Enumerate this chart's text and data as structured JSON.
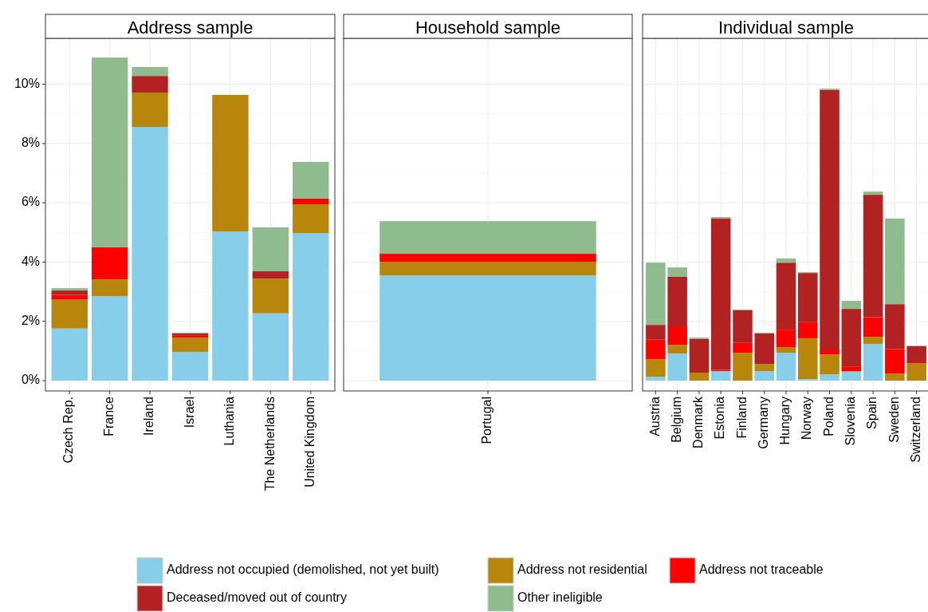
{
  "chart_data": [
    {
      "type": "bar",
      "stacked": true,
      "title": "Address sample",
      "categories": [
        "Czech Rep.",
        "France",
        "Ireland",
        "Israel",
        "Luthania",
        "The Netherlands",
        "United Kingdom"
      ],
      "ylim": [
        -0.35,
        11.55
      ],
      "yticks": [
        {
          "value": 0,
          "label": "0%"
        },
        {
          "value": 2,
          "label": "2%"
        },
        {
          "value": 4,
          "label": "4%"
        },
        {
          "value": 6,
          "label": "6%"
        },
        {
          "value": 8,
          "label": "8%"
        },
        {
          "value": 10,
          "label": "10%"
        }
      ],
      "grid": true,
      "legend": "bottom",
      "series": [
        {
          "name": "Address not occupied (demolished, not yet built)",
          "color": "#87ceeb",
          "values": [
            1.76,
            2.85,
            8.56,
            0.97,
            5.03,
            2.27,
            4.98
          ]
        },
        {
          "name": "Address not residential",
          "color": "#b8860b",
          "values": [
            0.97,
            0.57,
            1.16,
            0.48,
            4.61,
            1.17,
            0.97
          ]
        },
        {
          "name": "Address not traceable",
          "color": "#ff0000",
          "values": [
            0.16,
            1.08,
            0,
            0.08,
            0,
            0,
            0.19
          ]
        },
        {
          "name": "Deceased/moved out of country",
          "color": "#b22222",
          "values": [
            0.15,
            0,
            0.56,
            0.06,
            0,
            0.25,
            0
          ]
        },
        {
          "name": "Other ineligible",
          "color": "#8fbc8f",
          "values": [
            0.08,
            6.4,
            0.3,
            0.03,
            0,
            1.48,
            1.24
          ]
        }
      ]
    },
    {
      "type": "bar",
      "stacked": true,
      "title": "Household sample",
      "categories": [
        "Portugal"
      ],
      "ylim": [
        -0.35,
        11.55
      ],
      "yticks": [
        {
          "value": 0,
          "label": null
        },
        {
          "value": 2,
          "label": null
        },
        {
          "value": 4,
          "label": null
        },
        {
          "value": 6,
          "label": null
        },
        {
          "value": 8,
          "label": null
        },
        {
          "value": 10,
          "label": null
        }
      ],
      "grid": true,
      "tick_labels": "x",
      "series": [
        {
          "color": "#87ceeb",
          "values": [
            3.55
          ]
        },
        {
          "color": "#b8860b",
          "values": [
            0.46
          ]
        },
        {
          "color": "#ff0000",
          "values": [
            0.27
          ]
        },
        {
          "color": "#8fbc8f",
          "values": [
            1.1
          ]
        }
      ]
    },
    {
      "type": "bar",
      "stacked": true,
      "title": "Individual sample",
      "categories": [
        "Austria",
        "Belgium",
        "Denmark",
        "Estonia",
        "Finland",
        "Germany",
        "Hungary",
        "Norway",
        "Poland",
        "Slovenia",
        "Spain",
        "Sweden",
        "Switzerland"
      ],
      "ylim": [
        -0.35,
        11.55
      ],
      "yticks": [
        {
          "value": 0,
          "label": null
        },
        {
          "value": 2,
          "label": null
        },
        {
          "value": 4,
          "label": null
        },
        {
          "value": 6,
          "label": null
        },
        {
          "value": 8,
          "label": null
        },
        {
          "value": 10,
          "label": null
        }
      ],
      "grid": true,
      "tick_labels": "x",
      "series": [
        {
          "color": "#87ceeb",
          "values": [
            0.13,
            0.91,
            0,
            0.32,
            0,
            0.32,
            0.94,
            0.05,
            0.21,
            0.3,
            1.24,
            0,
            0
          ]
        },
        {
          "color": "#b8860b",
          "values": [
            0.59,
            0.3,
            0.27,
            0,
            0.94,
            0.24,
            0.19,
            1.38,
            0.67,
            0.02,
            0.24,
            0.24,
            0.59
          ]
        },
        {
          "color": "#ff0000",
          "values": [
            0.66,
            0.62,
            0,
            0.04,
            0.33,
            0,
            0.59,
            0.54,
            0.17,
            0.16,
            0.66,
            0.82,
            0.03
          ]
        },
        {
          "color": "#b22222",
          "values": [
            0.5,
            1.67,
            1.13,
            5.11,
            1.1,
            1.03,
            2.26,
            1.66,
            8.75,
            1.94,
            4.13,
            1.52,
            0.54
          ]
        },
        {
          "color": "#8fbc8f",
          "values": [
            2.1,
            0.32,
            0.05,
            0.05,
            0.03,
            0.03,
            0.14,
            0.03,
            0.05,
            0.27,
            0.11,
            2.89,
            0.02
          ]
        }
      ]
    }
  ]
}
